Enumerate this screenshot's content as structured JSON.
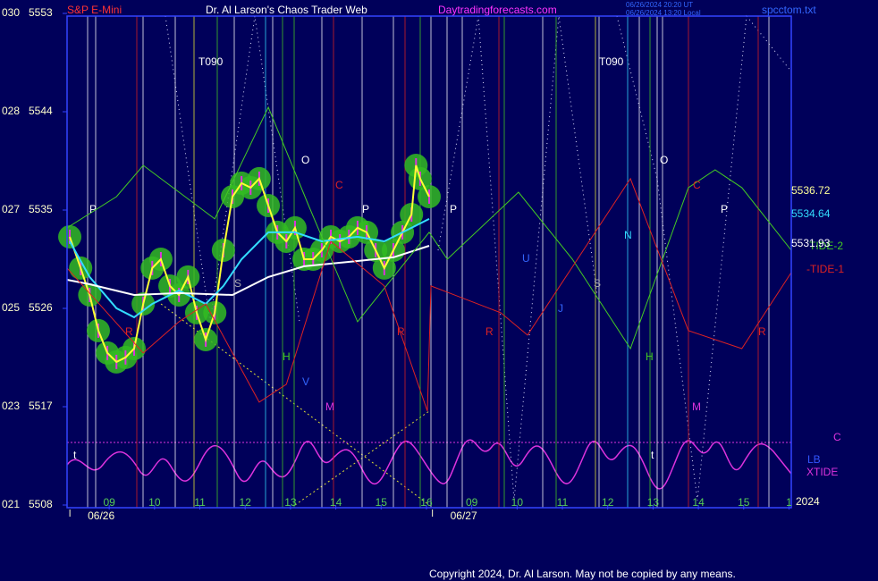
{
  "chart_data": {
    "type": "line",
    "title": "Dr. Al Larson's Chaos Trader Web",
    "instrument": "S&P E-Mini",
    "site": "Daytradingforecasts.com",
    "timestamps": [
      "06/26/2024 20:20 UT",
      "06/26/2024 13:20 Local"
    ],
    "file": "spcctom.txt",
    "copyright": "Copyright 2024, Dr. Al Larson. May not be copied by any means.",
    "ylim": [
      5508,
      5553
    ],
    "yticks": [
      5508,
      5517,
      5526,
      5535,
      5544,
      5553
    ],
    "y_codes": [
      "021",
      "023",
      "025",
      "027",
      "028",
      "030"
    ],
    "xlim": [
      -0.93,
      15.05
    ],
    "xticks": [
      {
        "value": 0,
        "label": "09"
      },
      {
        "value": 1,
        "label": "10"
      },
      {
        "value": 2,
        "label": "11"
      },
      {
        "value": 3,
        "label": "12"
      },
      {
        "value": 4,
        "label": "13"
      },
      {
        "value": 5,
        "label": "14"
      },
      {
        "value": 6,
        "label": "15"
      },
      {
        "value": 7,
        "label": "16"
      },
      {
        "value": 8,
        "label": "09"
      },
      {
        "value": 9,
        "label": "10"
      },
      {
        "value": 10,
        "label": "11"
      },
      {
        "value": 11,
        "label": "12"
      },
      {
        "value": 12,
        "label": "13"
      },
      {
        "value": 13,
        "label": "14"
      },
      {
        "value": 14,
        "label": "15"
      },
      {
        "value": 15,
        "label": "1"
      }
    ],
    "dates": [
      {
        "value": 0,
        "label": "06/26"
      },
      {
        "value": 8,
        "label": "06/27"
      }
    ],
    "year": "2024",
    "series": [
      {
        "color": "#ffff33",
        "x": [
          -0.87,
          -0.63,
          -0.43,
          -0.24,
          -0.04,
          0.16,
          0.36,
          0.55,
          0.75,
          0.95,
          1.14,
          1.34,
          1.54,
          1.74,
          1.93,
          2.13,
          2.33,
          2.52,
          2.72,
          2.92,
          3.12,
          3.31,
          3.51,
          3.71,
          3.91,
          4.1,
          4.3,
          4.5,
          4.69,
          4.89,
          5.09,
          5.29,
          5.48,
          5.68,
          5.88,
          6.07,
          6.27,
          6.47,
          6.67,
          6.77,
          6.86,
          7.06
        ],
        "values": [
          5532.55,
          5529.69,
          5527.23,
          5523.96,
          5521.92,
          5521.1,
          5521.51,
          5522.32,
          5526.41,
          5529.69,
          5530.5,
          5528.05,
          5527.23,
          5528.87,
          5525.6,
          5523.14,
          5525.6,
          5531.32,
          5536.23,
          5537.46,
          5537.05,
          5537.87,
          5535.41,
          5532.96,
          5532.14,
          5533.37,
          5530.5,
          5530.5,
          5531.32,
          5532.55,
          5532.14,
          5532.55,
          5533.37,
          5532.96,
          5531.32,
          5529.69,
          5531.32,
          5532.96,
          5534.59,
          5539.09,
          5537.87,
          5536.23
        ]
      },
      {
        "color": "#33ddff",
        "x": [
          -0.87,
          -0.43,
          0.16,
          0.55,
          0.95,
          1.54,
          2.13,
          2.52,
          2.92,
          3.51,
          4.1,
          4.69,
          5.48,
          6.07,
          6.67,
          7.06
        ],
        "values": [
          5532.14,
          5528.87,
          5526.01,
          5525.19,
          5526.41,
          5527.64,
          5526.41,
          5528.05,
          5530.5,
          5532.96,
          5532.96,
          5532.14,
          5532.55,
          5532.14,
          5533.37,
          5534.19
        ]
      },
      {
        "color": "#ffffff",
        "x": [
          -0.93,
          -0.43,
          0.55,
          1.54,
          2.72,
          3.51,
          4.3,
          5.48,
          6.27,
          7.06
        ],
        "values": [
          5528.62,
          5528.21,
          5527.23,
          5527.4,
          5527.23,
          5528.87,
          5529.85,
          5530.34,
          5530.67,
          5531.73
        ]
      },
      {
        "name": "TIDE-2",
        "color": "#44cc22",
        "x": [
          -0.93,
          0.16,
          0.75,
          2.33,
          3.51,
          4.4,
          5.48,
          7.06,
          7.46,
          9.03,
          10.22,
          11.5,
          12.78,
          13.37,
          13.96,
          15.05
        ],
        "values": [
          5533.37,
          5536.23,
          5539.09,
          5534.19,
          5544.41,
          5535.41,
          5524.78,
          5532.96,
          5530.5,
          5536.64,
          5530.5,
          5522.32,
          5537.05,
          5538.68,
          5537.05,
          5531.32
        ]
      },
      {
        "name": "-TIDE-1",
        "color": "#dd2222",
        "x": [
          -0.93,
          0.75,
          1.54,
          2.13,
          3.31,
          3.91,
          4.89,
          6.07,
          7.02,
          7.1,
          8.64,
          9.23,
          11.5,
          12.78,
          13.96,
          15.05
        ],
        "values": [
          5529.69,
          5521.92,
          5524.78,
          5526.41,
          5517.42,
          5519.05,
          5532.14,
          5528.05,
          5516.6,
          5528.05,
          5525.6,
          5523.55,
          5537.87,
          5523.96,
          5522.32,
          5529.28
        ]
      }
    ],
    "right_values": [
      {
        "value": 5536.72,
        "color": "#ffff99"
      },
      {
        "value": 5534.64,
        "color": "#33ddff"
      },
      {
        "value": 5531.93,
        "color": "#ffffff"
      }
    ],
    "right_labels": [
      {
        "text": "C",
        "color": "#dd33dd"
      },
      {
        "text": "LB",
        "color": "#3355ff"
      },
      {
        "text": "XTIDE",
        "color": "#dd33dd"
      }
    ],
    "annotations": [
      "T090",
      "P",
      "O",
      "C",
      "P",
      "S",
      "R",
      "H",
      "V",
      "M",
      "R",
      "P",
      "R",
      "U",
      "J",
      "S",
      "N",
      "H",
      "T090",
      "O",
      "C",
      "P",
      "M",
      "R",
      "t",
      "t"
    ]
  }
}
